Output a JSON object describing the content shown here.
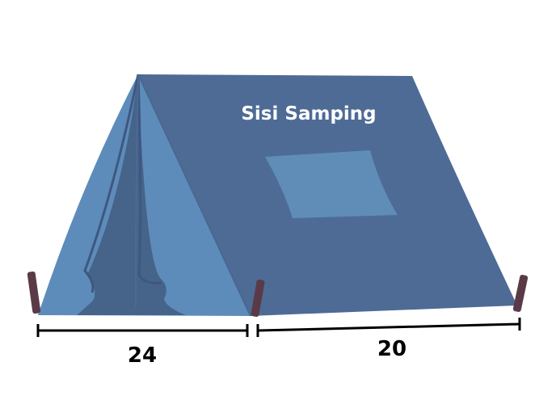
{
  "side_label": "Sisi Samping",
  "dimensions": {
    "front_width": "24",
    "side_length": "20"
  },
  "colors": {
    "tent_side": "#4e6b96",
    "tent_front_light": "#5d8cbb",
    "tent_front_shadow": "#466389",
    "tent_fold": "#3f5780",
    "window": "#5f8db8",
    "pole": "#5b3a47",
    "measure_line": "#000000",
    "label_text": "#ffffff"
  },
  "icons": {
    "tent": "tent-illustration"
  }
}
